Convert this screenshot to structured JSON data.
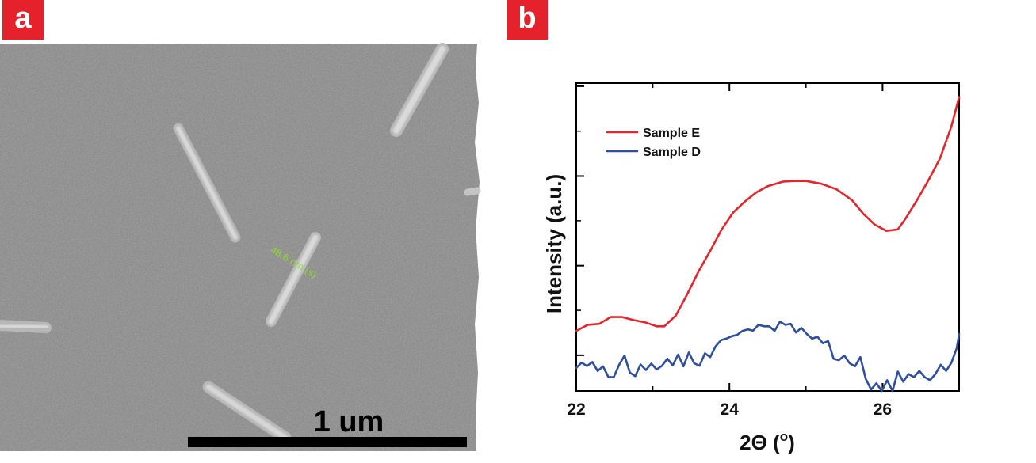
{
  "panels": {
    "a": {
      "badge": "a",
      "measurement_label": "48.6 nm (s)",
      "scale_bar_label": "1 um"
    },
    "b": {
      "badge": "b"
    }
  },
  "colors": {
    "badge": "#e5222b",
    "sample_e": "#e3262c",
    "sample_d": "#2f4f9e",
    "measurement": "#8fd63a"
  },
  "chart_data": {
    "type": "line",
    "title": "",
    "xlabel": "2Θ (o)",
    "xlabel_parts": {
      "main": "2Θ (",
      "sup": "o",
      "close": ")"
    },
    "ylabel": "Intensity (a.u.)",
    "xlim": [
      22,
      27
    ],
    "ylim": [
      0,
      100
    ],
    "xticks": [
      "22",
      "24",
      "26"
    ],
    "xtick_values": [
      22,
      24,
      26
    ],
    "ytick_labels_visible": false,
    "legend_position": "top-left",
    "series": [
      {
        "name": "Sample E",
        "color": "#e3262c",
        "x": [
          22.0,
          22.15,
          22.3,
          22.45,
          22.6,
          22.75,
          22.9,
          23.05,
          23.15,
          23.3,
          23.45,
          23.6,
          23.75,
          23.9,
          24.05,
          24.2,
          24.35,
          24.5,
          24.7,
          24.85,
          25.0,
          25.2,
          25.4,
          25.6,
          25.75,
          25.9,
          26.05,
          26.2,
          26.3,
          26.45,
          26.6,
          26.75,
          26.9,
          27.0
        ],
        "y": [
          19.5,
          21.5,
          21.8,
          24.0,
          24.0,
          23.0,
          22.3,
          21.0,
          21.0,
          24.5,
          31.5,
          39.0,
          45.5,
          52.5,
          58.0,
          61.5,
          64.5,
          66.5,
          68.0,
          68.2,
          68.2,
          67.3,
          65.5,
          62.0,
          57.5,
          54.0,
          52.0,
          52.5,
          56.0,
          62.0,
          68.5,
          75.5,
          86.0,
          95.5
        ]
      },
      {
        "name": "Sample D",
        "color": "#2f4f9e",
        "x": [
          22.0,
          22.07,
          22.14,
          22.21,
          22.28,
          22.35,
          22.42,
          22.49,
          22.56,
          22.63,
          22.7,
          22.77,
          22.84,
          22.91,
          22.98,
          23.05,
          23.12,
          23.19,
          23.26,
          23.33,
          23.4,
          23.47,
          23.54,
          23.61,
          23.68,
          23.75,
          23.82,
          23.89,
          23.96,
          24.03,
          24.1,
          24.17,
          24.24,
          24.31,
          24.38,
          24.45,
          24.52,
          24.59,
          24.66,
          24.73,
          24.8,
          24.87,
          24.94,
          25.01,
          25.08,
          25.15,
          25.22,
          25.29,
          25.36,
          25.43,
          25.5,
          25.57,
          25.64,
          25.71,
          25.78,
          25.85,
          25.92,
          25.99,
          26.06,
          26.13,
          26.2,
          26.27,
          26.34,
          26.41,
          26.48,
          26.55,
          26.62,
          26.69,
          26.76,
          26.83,
          26.9,
          26.97,
          27.0
        ],
        "y": [
          7.5,
          9.2,
          8.1,
          9.4,
          6.5,
          8.0,
          4.5,
          4.5,
          8.5,
          11.5,
          6.0,
          4.8,
          8.6,
          6.8,
          8.9,
          7.0,
          8.2,
          10.5,
          8.3,
          11.8,
          8.0,
          12.5,
          9.0,
          8.2,
          12.2,
          11.0,
          14.5,
          16.5,
          17.0,
          17.8,
          18.2,
          19.5,
          20.0,
          19.6,
          21.5,
          21.0,
          21.0,
          19.5,
          22.5,
          21.5,
          21.8,
          19.0,
          20.5,
          18.5,
          17.0,
          17.6,
          15.5,
          16.2,
          10.5,
          10.0,
          11.5,
          9.0,
          8.0,
          11.0,
          4.0,
          0.5,
          2.5,
          0.0,
          3.5,
          0.0,
          6.3,
          3.0,
          5.5,
          4.5,
          6.5,
          4.5,
          3.5,
          5.5,
          8.5,
          6.5,
          9.2,
          14.0,
          18.5
        ]
      }
    ]
  }
}
